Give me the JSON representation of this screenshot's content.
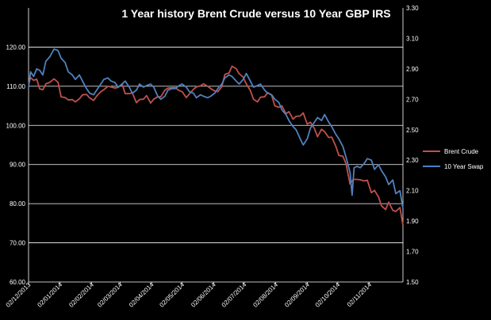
{
  "colors": {
    "background": "#000000",
    "gridline": "#ffffff",
    "text": "#ffffff",
    "brent": "#c0504d",
    "swap": "#4f81bd"
  },
  "chart_data": {
    "type": "line",
    "title": "1 Year history Brent Crude versus 10 Year GBP  IRS",
    "x_type": "date",
    "x_range": [
      "2013-12-02",
      "2014-12-05"
    ],
    "x_tick_labels": [
      "02/12/2013",
      "02/01/2014",
      "02/02/2014",
      "02/03/2014",
      "02/04/2014",
      "02/05/2014",
      "02/06/2014",
      "02/07/2014",
      "02/08/2014",
      "02/09/2014",
      "02/10/2014",
      "02/11/2014"
    ],
    "x_ticks": [
      "2013-12-02",
      "2014-01-02",
      "2014-02-02",
      "2014-03-02",
      "2014-04-02",
      "2014-05-02",
      "2014-06-02",
      "2014-07-02",
      "2014-08-02",
      "2014-09-02",
      "2014-10-02",
      "2014-11-02"
    ],
    "y_left": {
      "range": [
        60,
        130
      ],
      "ticks": [
        "60.00",
        "70.00",
        "80.00",
        "90.00",
        "100.00",
        "110.00",
        "120.00"
      ]
    },
    "y_right": {
      "range": [
        1.5,
        3.3
      ],
      "ticks": [
        "1.50",
        "1.70",
        "1.90",
        "2.10",
        "2.30",
        "2.50",
        "2.70",
        "2.90",
        "3.10",
        "3.30"
      ]
    },
    "grid": true,
    "legend_position": "right",
    "series": [
      {
        "name": "Brent Crude",
        "axis": "left",
        "points": [
          [
            "2013-12-02",
            110.5
          ],
          [
            "2013-12-04",
            112.2
          ],
          [
            "2013-12-07",
            111.5
          ],
          [
            "2013-12-10",
            111.8
          ],
          [
            "2013-12-13",
            109.3
          ],
          [
            "2013-12-16",
            109.1
          ],
          [
            "2013-12-19",
            110.6
          ],
          [
            "2013-12-23",
            111.0
          ],
          [
            "2013-12-27",
            111.9
          ],
          [
            "2013-12-31",
            111.0
          ],
          [
            "2014-01-03",
            107.3
          ],
          [
            "2014-01-07",
            107.1
          ],
          [
            "2014-01-10",
            106.5
          ],
          [
            "2014-01-14",
            106.6
          ],
          [
            "2014-01-17",
            106.0
          ],
          [
            "2014-01-21",
            106.8
          ],
          [
            "2014-01-24",
            107.8
          ],
          [
            "2014-01-28",
            107.9
          ],
          [
            "2014-01-31",
            107.0
          ],
          [
            "2014-02-04",
            106.4
          ],
          [
            "2014-02-07",
            107.5
          ],
          [
            "2014-02-11",
            108.6
          ],
          [
            "2014-02-14",
            109.1
          ],
          [
            "2014-02-18",
            110.0
          ],
          [
            "2014-02-21",
            109.8
          ],
          [
            "2014-02-25",
            109.5
          ],
          [
            "2014-02-28",
            109.7
          ],
          [
            "2014-03-04",
            110.6
          ],
          [
            "2014-03-07",
            108.1
          ],
          [
            "2014-03-11",
            108.1
          ],
          [
            "2014-03-14",
            108.3
          ],
          [
            "2014-03-18",
            105.8
          ],
          [
            "2014-03-21",
            106.6
          ],
          [
            "2014-03-25",
            106.7
          ],
          [
            "2014-03-28",
            107.6
          ],
          [
            "2014-04-01",
            105.7
          ],
          [
            "2014-04-04",
            106.7
          ],
          [
            "2014-04-08",
            107.3
          ],
          [
            "2014-04-11",
            107.3
          ],
          [
            "2014-04-15",
            109.0
          ],
          [
            "2014-04-18",
            109.5
          ],
          [
            "2014-04-22",
            109.6
          ],
          [
            "2014-04-25",
            109.6
          ],
          [
            "2014-04-29",
            108.9
          ],
          [
            "2014-05-02",
            108.6
          ],
          [
            "2014-05-06",
            107.1
          ],
          [
            "2014-05-09",
            108.0
          ],
          [
            "2014-05-13",
            109.2
          ],
          [
            "2014-05-16",
            109.8
          ],
          [
            "2014-05-20",
            110.1
          ],
          [
            "2014-05-23",
            110.6
          ],
          [
            "2014-05-27",
            110.0
          ],
          [
            "2014-05-30",
            109.4
          ],
          [
            "2014-06-03",
            108.8
          ],
          [
            "2014-06-06",
            108.6
          ],
          [
            "2014-06-10",
            109.9
          ],
          [
            "2014-06-13",
            113.0
          ],
          [
            "2014-06-17",
            113.4
          ],
          [
            "2014-06-20",
            115.1
          ],
          [
            "2014-06-24",
            114.5
          ],
          [
            "2014-06-27",
            113.2
          ],
          [
            "2014-07-01",
            112.3
          ],
          [
            "2014-07-04",
            110.6
          ],
          [
            "2014-07-08",
            108.9
          ],
          [
            "2014-07-11",
            106.7
          ],
          [
            "2014-07-15",
            106.0
          ],
          [
            "2014-07-18",
            107.2
          ],
          [
            "2014-07-22",
            107.3
          ],
          [
            "2014-07-25",
            108.4
          ],
          [
            "2014-07-29",
            107.7
          ],
          [
            "2014-08-01",
            105.0
          ],
          [
            "2014-08-05",
            104.6
          ],
          [
            "2014-08-08",
            105.0
          ],
          [
            "2014-08-12",
            103.0
          ],
          [
            "2014-08-15",
            103.5
          ],
          [
            "2014-08-19",
            101.6
          ],
          [
            "2014-08-22",
            102.3
          ],
          [
            "2014-08-26",
            102.4
          ],
          [
            "2014-08-29",
            103.2
          ],
          [
            "2014-09-02",
            100.3
          ],
          [
            "2014-09-05",
            100.8
          ],
          [
            "2014-09-09",
            99.2
          ],
          [
            "2014-09-12",
            97.1
          ],
          [
            "2014-09-16",
            99.0
          ],
          [
            "2014-09-19",
            98.4
          ],
          [
            "2014-09-23",
            96.9
          ],
          [
            "2014-09-26",
            97.0
          ],
          [
            "2014-09-30",
            94.7
          ],
          [
            "2014-10-03",
            92.3
          ],
          [
            "2014-10-07",
            92.1
          ],
          [
            "2014-10-10",
            90.2
          ],
          [
            "2014-10-14",
            85.0
          ],
          [
            "2014-10-17",
            86.2
          ],
          [
            "2014-10-21",
            86.2
          ],
          [
            "2014-10-24",
            86.1
          ],
          [
            "2014-10-28",
            85.8
          ],
          [
            "2014-10-31",
            86.0
          ],
          [
            "2014-11-04",
            82.8
          ],
          [
            "2014-11-07",
            83.4
          ],
          [
            "2014-11-11",
            81.7
          ],
          [
            "2014-11-14",
            79.4
          ],
          [
            "2014-11-18",
            78.5
          ],
          [
            "2014-11-21",
            80.4
          ],
          [
            "2014-11-25",
            78.3
          ],
          [
            "2014-11-28",
            78.0
          ],
          [
            "2014-12-02",
            79.0
          ],
          [
            "2014-12-05",
            74.5
          ]
        ]
      },
      {
        "name": "10 Year Swap",
        "axis": "right",
        "points": [
          [
            "2013-12-02",
            2.78
          ],
          [
            "2013-12-04",
            2.88
          ],
          [
            "2013-12-07",
            2.85
          ],
          [
            "2013-12-10",
            2.9
          ],
          [
            "2013-12-13",
            2.89
          ],
          [
            "2013-12-16",
            2.86
          ],
          [
            "2013-12-19",
            2.95
          ],
          [
            "2013-12-23",
            2.98
          ],
          [
            "2013-12-27",
            3.03
          ],
          [
            "2013-12-31",
            3.02
          ],
          [
            "2014-01-03",
            2.97
          ],
          [
            "2014-01-07",
            2.94
          ],
          [
            "2014-01-10",
            2.88
          ],
          [
            "2014-01-14",
            2.86
          ],
          [
            "2014-01-17",
            2.83
          ],
          [
            "2014-01-21",
            2.86
          ],
          [
            "2014-01-24",
            2.82
          ],
          [
            "2014-01-28",
            2.77
          ],
          [
            "2014-01-31",
            2.74
          ],
          [
            "2014-02-04",
            2.73
          ],
          [
            "2014-02-07",
            2.76
          ],
          [
            "2014-02-11",
            2.8
          ],
          [
            "2014-02-14",
            2.83
          ],
          [
            "2014-02-18",
            2.84
          ],
          [
            "2014-02-21",
            2.82
          ],
          [
            "2014-02-25",
            2.81
          ],
          [
            "2014-02-28",
            2.78
          ],
          [
            "2014-03-04",
            2.8
          ],
          [
            "2014-03-07",
            2.82
          ],
          [
            "2014-03-11",
            2.78
          ],
          [
            "2014-03-14",
            2.74
          ],
          [
            "2014-03-18",
            2.76
          ],
          [
            "2014-03-21",
            2.8
          ],
          [
            "2014-03-25",
            2.78
          ],
          [
            "2014-03-28",
            2.79
          ],
          [
            "2014-04-01",
            2.8
          ],
          [
            "2014-04-04",
            2.78
          ],
          [
            "2014-04-08",
            2.72
          ],
          [
            "2014-04-11",
            2.7
          ],
          [
            "2014-04-15",
            2.72
          ],
          [
            "2014-04-18",
            2.76
          ],
          [
            "2014-04-22",
            2.77
          ],
          [
            "2014-04-25",
            2.77
          ],
          [
            "2014-04-29",
            2.79
          ],
          [
            "2014-05-02",
            2.8
          ],
          [
            "2014-05-06",
            2.78
          ],
          [
            "2014-05-09",
            2.75
          ],
          [
            "2014-05-13",
            2.74
          ],
          [
            "2014-05-16",
            2.71
          ],
          [
            "2014-05-20",
            2.73
          ],
          [
            "2014-05-23",
            2.72
          ],
          [
            "2014-05-27",
            2.71
          ],
          [
            "2014-05-30",
            2.72
          ],
          [
            "2014-06-03",
            2.74
          ],
          [
            "2014-06-06",
            2.77
          ],
          [
            "2014-06-10",
            2.8
          ],
          [
            "2014-06-13",
            2.84
          ],
          [
            "2014-06-17",
            2.86
          ],
          [
            "2014-06-20",
            2.85
          ],
          [
            "2014-06-24",
            2.82
          ],
          [
            "2014-06-27",
            2.8
          ],
          [
            "2014-07-01",
            2.83
          ],
          [
            "2014-07-04",
            2.87
          ],
          [
            "2014-07-08",
            2.82
          ],
          [
            "2014-07-11",
            2.78
          ],
          [
            "2014-07-15",
            2.79
          ],
          [
            "2014-07-18",
            2.8
          ],
          [
            "2014-07-22",
            2.76
          ],
          [
            "2014-07-25",
            2.74
          ],
          [
            "2014-07-29",
            2.73
          ],
          [
            "2014-08-01",
            2.7
          ],
          [
            "2014-08-05",
            2.68
          ],
          [
            "2014-08-08",
            2.63
          ],
          [
            "2014-08-12",
            2.6
          ],
          [
            "2014-08-15",
            2.56
          ],
          [
            "2014-08-19",
            2.52
          ],
          [
            "2014-08-22",
            2.5
          ],
          [
            "2014-08-26",
            2.44
          ],
          [
            "2014-08-29",
            2.4
          ],
          [
            "2014-09-02",
            2.44
          ],
          [
            "2014-09-05",
            2.51
          ],
          [
            "2014-09-09",
            2.55
          ],
          [
            "2014-09-12",
            2.58
          ],
          [
            "2014-09-16",
            2.56
          ],
          [
            "2014-09-19",
            2.6
          ],
          [
            "2014-09-23",
            2.55
          ],
          [
            "2014-09-26",
            2.52
          ],
          [
            "2014-09-30",
            2.47
          ],
          [
            "2014-10-03",
            2.44
          ],
          [
            "2014-10-07",
            2.39
          ],
          [
            "2014-10-10",
            2.32
          ],
          [
            "2014-10-14",
            2.22
          ],
          [
            "2014-10-16",
            2.07
          ],
          [
            "2014-10-18",
            2.25
          ],
          [
            "2014-10-21",
            2.26
          ],
          [
            "2014-10-24",
            2.25
          ],
          [
            "2014-10-28",
            2.28
          ],
          [
            "2014-10-31",
            2.31
          ],
          [
            "2014-11-04",
            2.3
          ],
          [
            "2014-11-07",
            2.24
          ],
          [
            "2014-11-11",
            2.27
          ],
          [
            "2014-11-14",
            2.23
          ],
          [
            "2014-11-18",
            2.19
          ],
          [
            "2014-11-21",
            2.14
          ],
          [
            "2014-11-25",
            2.17
          ],
          [
            "2014-11-28",
            2.08
          ],
          [
            "2014-12-02",
            2.1
          ],
          [
            "2014-12-05",
            1.98
          ]
        ]
      }
    ]
  }
}
